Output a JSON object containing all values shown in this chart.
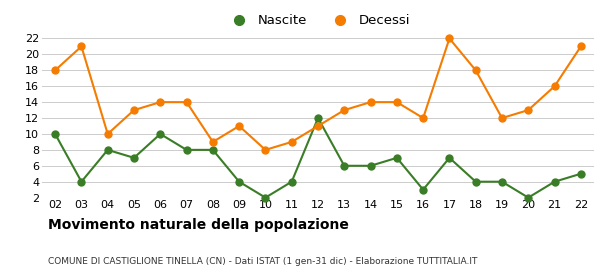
{
  "years": [
    2,
    3,
    4,
    5,
    6,
    7,
    8,
    9,
    10,
    11,
    12,
    13,
    14,
    15,
    16,
    17,
    18,
    19,
    20,
    21,
    22
  ],
  "nascite": [
    10,
    4,
    8,
    7,
    10,
    8,
    8,
    4,
    2,
    4,
    12,
    6,
    6,
    7,
    3,
    7,
    4,
    4,
    2,
    4,
    5
  ],
  "decessi": [
    18,
    21,
    10,
    13,
    14,
    14,
    9,
    11,
    8,
    9,
    11,
    13,
    14,
    14,
    12,
    22,
    18,
    12,
    13,
    16,
    21
  ],
  "nascite_color": "#3a7d27",
  "decessi_color": "#f57c00",
  "title": "Movimento naturale della popolazione",
  "subtitle": "COMUNE DI CASTIGLIONE TINELLA (CN) - Dati ISTAT (1 gen-31 dic) - Elaborazione TUTTITALIA.IT",
  "ylim": [
    2,
    22
  ],
  "yticks": [
    2,
    4,
    6,
    8,
    10,
    12,
    14,
    16,
    18,
    20,
    22
  ],
  "background_color": "#ffffff",
  "grid_color": "#cccccc",
  "legend_nascite": "Nascite",
  "legend_decessi": "Decessi",
  "marker_size": 5,
  "line_width": 1.5
}
